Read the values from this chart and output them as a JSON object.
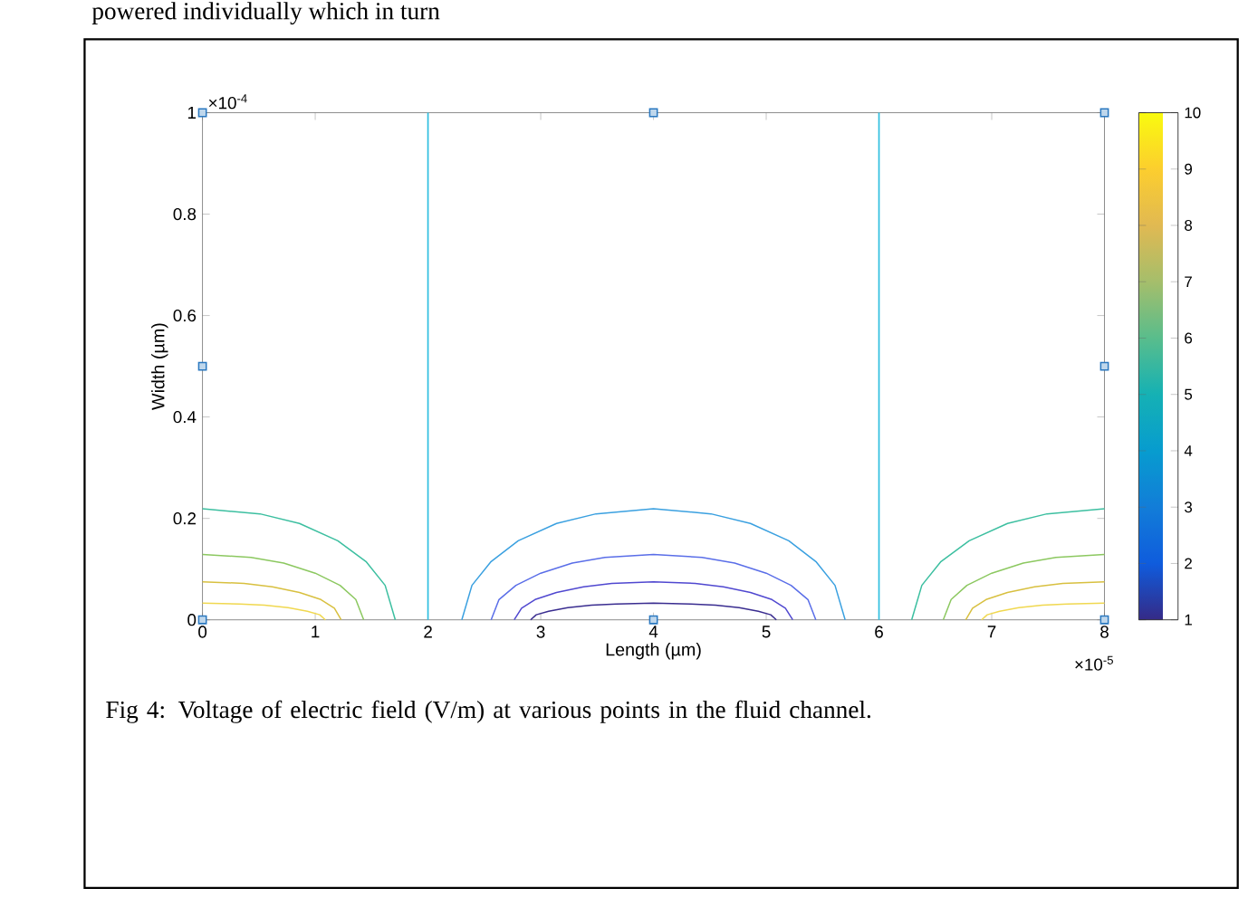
{
  "chart_data": {
    "type": "line",
    "xlabel": "Length (µm)",
    "ylabel": "Width (µm)",
    "xlim": [
      0,
      8
    ],
    "ylim": [
      0,
      1
    ],
    "xticks": [
      0,
      1,
      2,
      3,
      4,
      5,
      6,
      7,
      8
    ],
    "yticks": [
      0,
      0.2,
      0.4,
      0.6,
      0.8,
      1
    ],
    "clim": [
      1,
      10
    ],
    "cticks": [
      1,
      2,
      3,
      4,
      5,
      6,
      7,
      8,
      9,
      10
    ],
    "ref_lines": [
      {
        "axis": "x",
        "value": 2,
        "color": "#30bfe0"
      },
      {
        "axis": "x",
        "value": 6,
        "color": "#30bfe0"
      }
    ],
    "series": [
      {
        "color": "#3cbfa0",
        "x": [
          0,
          0.51,
          0.86,
          1.2,
          1.45,
          1.62,
          1.71
        ],
        "values": [
          0.219,
          0.209,
          0.19,
          0.156,
          0.115,
          0.068,
          0
        ]
      },
      {
        "color": "#8cc860",
        "x": [
          0,
          0.43,
          0.72,
          1.0,
          1.22,
          1.36,
          1.43
        ],
        "values": [
          0.129,
          0.123,
          0.112,
          0.092,
          0.068,
          0.04,
          0
        ]
      },
      {
        "color": "#d8c040",
        "x": [
          0,
          0.37,
          0.62,
          0.86,
          1.05,
          1.17,
          1.23
        ],
        "values": [
          0.075,
          0.072,
          0.065,
          0.054,
          0.04,
          0.023,
          0
        ]
      },
      {
        "color": "#f0d850",
        "x": [
          0,
          0.33,
          0.55,
          0.76,
          0.93,
          1.04,
          1.09
        ],
        "values": [
          0.033,
          0.031,
          0.029,
          0.024,
          0.017,
          0.01,
          0
        ]
      },
      {
        "color": "#3cbfa0",
        "x": [
          8,
          7.49,
          7.14,
          6.8,
          6.55,
          6.38,
          6.29
        ],
        "values": [
          0.219,
          0.209,
          0.19,
          0.156,
          0.115,
          0.068,
          0
        ]
      },
      {
        "color": "#8cc860",
        "x": [
          8,
          7.57,
          7.28,
          7.0,
          6.78,
          6.64,
          6.57
        ],
        "values": [
          0.129,
          0.123,
          0.112,
          0.092,
          0.068,
          0.04,
          0
        ]
      },
      {
        "color": "#d8c040",
        "x": [
          8,
          7.63,
          7.38,
          7.14,
          6.95,
          6.83,
          6.77
        ],
        "values": [
          0.075,
          0.072,
          0.065,
          0.054,
          0.04,
          0.023,
          0
        ]
      },
      {
        "color": "#f0d850",
        "x": [
          8,
          7.67,
          7.45,
          7.24,
          7.07,
          6.96,
          6.91
        ],
        "values": [
          0.033,
          0.031,
          0.029,
          0.024,
          0.017,
          0.01,
          0
        ]
      },
      {
        "color": "#3aa0e0",
        "x": [
          2.3,
          2.39,
          2.56,
          2.8,
          3.14,
          3.49,
          4,
          4.51,
          4.86,
          5.2,
          5.44,
          5.61,
          5.7
        ],
        "values": [
          0,
          0.068,
          0.115,
          0.156,
          0.19,
          0.209,
          0.219,
          0.209,
          0.19,
          0.156,
          0.115,
          0.068,
          0
        ]
      },
      {
        "color": "#5a6ee8",
        "x": [
          2.56,
          2.63,
          2.78,
          3.0,
          3.28,
          3.57,
          4,
          4.43,
          4.72,
          5.0,
          5.22,
          5.37,
          5.44
        ],
        "values": [
          0,
          0.04,
          0.068,
          0.092,
          0.112,
          0.123,
          0.129,
          0.123,
          0.112,
          0.092,
          0.068,
          0.04,
          0
        ]
      },
      {
        "color": "#5048d0",
        "x": [
          2.765,
          2.83,
          2.95,
          3.14,
          3.38,
          3.63,
          4,
          4.37,
          4.62,
          4.86,
          5.05,
          5.17,
          5.235
        ],
        "values": [
          0,
          0.023,
          0.04,
          0.054,
          0.065,
          0.072,
          0.075,
          0.072,
          0.065,
          0.054,
          0.04,
          0.023,
          0
        ]
      },
      {
        "color": "#3a2d90",
        "x": [
          2.91,
          2.96,
          3.07,
          3.24,
          3.45,
          3.67,
          4,
          4.33,
          4.55,
          4.76,
          4.93,
          5.04,
          5.09
        ],
        "values": [
          0,
          0.01,
          0.017,
          0.024,
          0.029,
          0.031,
          0.033,
          0.031,
          0.029,
          0.024,
          0.017,
          0.01,
          0
        ]
      },
      {
        "type": "scatter",
        "marker": "square",
        "color": "#2a78c0",
        "x": [
          0,
          0,
          0,
          4,
          4,
          8,
          8,
          8
        ],
        "values": [
          0,
          0.5,
          1,
          0,
          1,
          0,
          0.5,
          1
        ]
      }
    ],
    "annotations": [
      "×10$^{-4}$",
      "×10$^{-5}$",
      "Fig 4: Voltage of electric field (V/m) at various points in the fluid channel.",
      "powered individually which in turn"
    ]
  }
}
